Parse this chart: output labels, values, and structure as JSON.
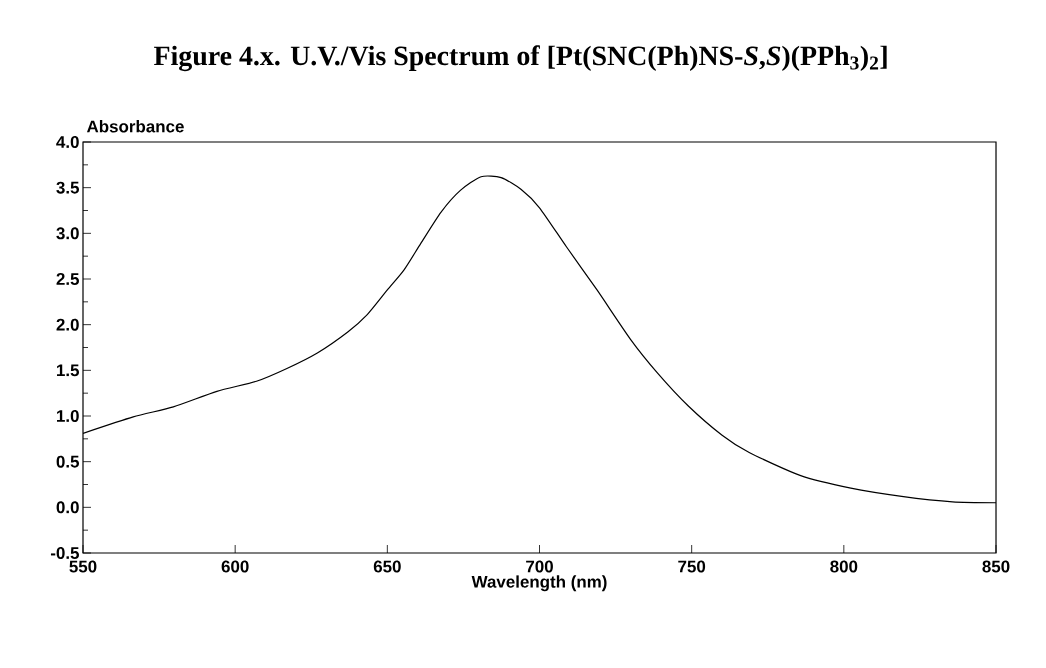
{
  "chart_data": {
    "type": "line",
    "title": "Figure 4.x. U.V./Vis Spectrum of [Pt(SNC(Ph)NS-*S*,*S*)(PPh$_{3}$)$_{2}$]",
    "xlabel": "Wavelength (nm)",
    "ylabel": "Absorbance",
    "x": [
      550,
      566.5,
      579.7,
      594,
      607,
      617,
      627,
      637,
      643.4,
      650,
      655.5,
      661,
      667.6,
      674,
      680.8,
      687.4,
      694,
      700,
      708.9,
      718.9,
      729.9,
      738.8,
      748.9,
      760,
      768.9,
      785.6,
      802.3,
      819,
      835.7,
      850
    ],
    "series": [
      {
        "color": "#000000",
        "values": [
          0.81,
          0.99,
          1.1,
          1.27,
          1.38,
          1.52,
          1.69,
          1.92,
          2.11,
          2.38,
          2.6,
          2.89,
          3.23,
          3.47,
          3.62,
          3.61,
          3.48,
          3.28,
          2.85,
          2.38,
          1.84,
          1.47,
          1.11,
          0.79,
          0.6,
          0.35,
          0.21,
          0.12,
          0.06,
          0.05
        ]
      }
    ],
    "xlim": [
      550,
      850
    ],
    "ylim": [
      -0.5,
      4.0
    ],
    "xticks": [
      550,
      600,
      650,
      700,
      750,
      800,
      850
    ],
    "yticks": [
      {
        "value": -0.5,
        "label": "-0.5"
      },
      {
        "value": 0,
        "label": "0.0"
      },
      {
        "value": 0.5,
        "label": "0.5"
      },
      {
        "value": 1,
        "label": "1.0"
      },
      {
        "value": 1.5,
        "label": "1.5"
      },
      {
        "value": 2,
        "label": "2.0"
      },
      {
        "value": 2.5,
        "label": "2.5"
      },
      {
        "value": 3,
        "label": "3.0"
      },
      {
        "value": 3.5,
        "label": "3.5"
      },
      {
        "value": 4,
        "label": "4.0"
      }
    ],
    "grid": false,
    "line_style": "solid"
  }
}
